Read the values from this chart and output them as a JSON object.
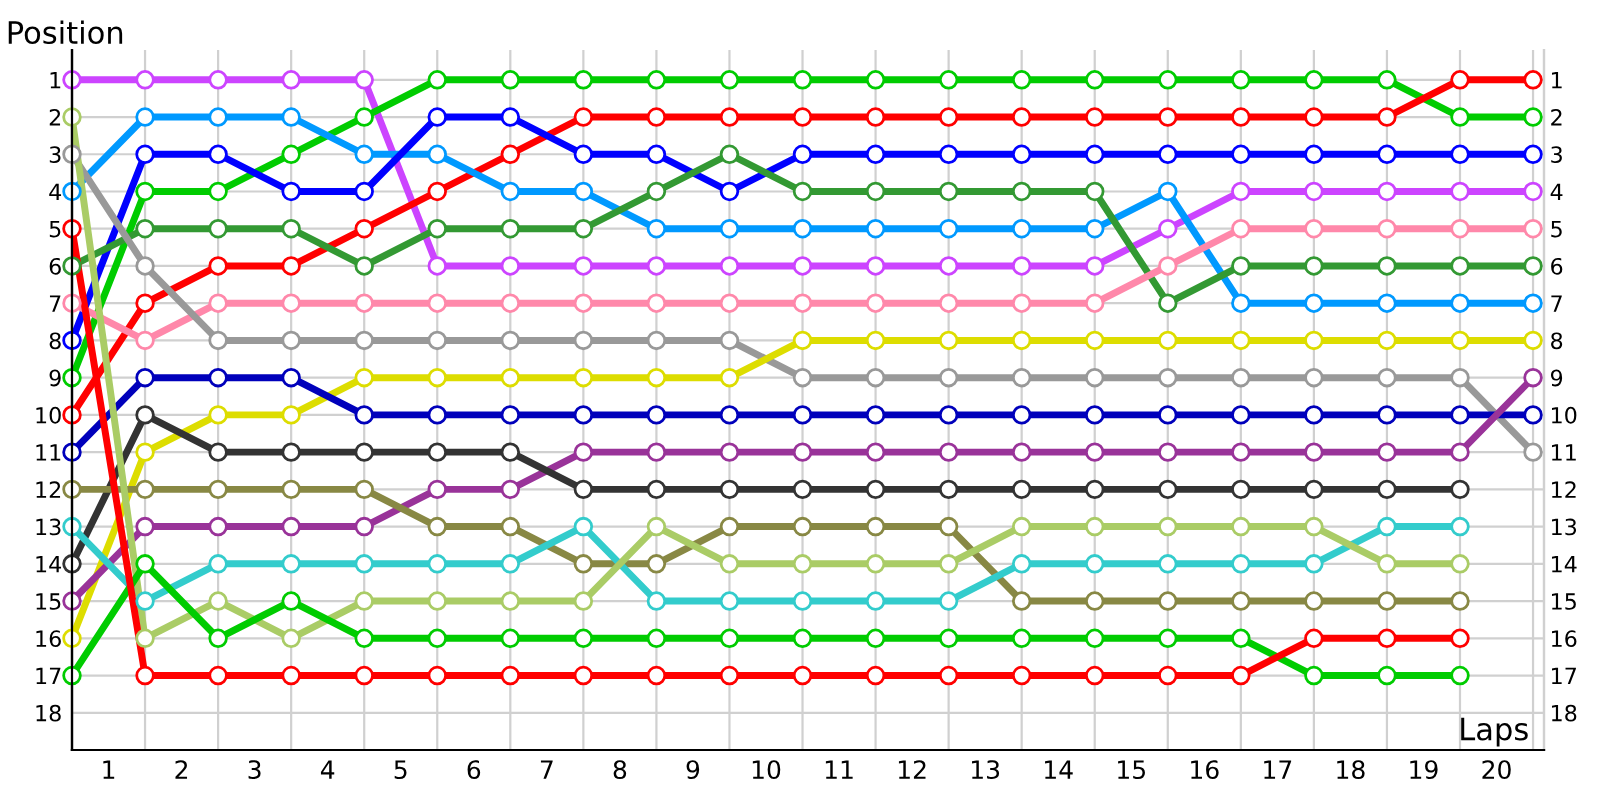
{
  "chart_data": {
    "type": "line",
    "xlabel": "Laps",
    "ylabel": "Position",
    "x": [
      0,
      1,
      2,
      3,
      4,
      5,
      6,
      7,
      8,
      9,
      10,
      11,
      12,
      13,
      14,
      15,
      16,
      17,
      18,
      19,
      20
    ],
    "xlim": [
      0,
      20.15
    ],
    "xticks": [
      {
        "value": 0.5,
        "label": "1"
      },
      {
        "value": 1.5,
        "label": "2"
      },
      {
        "value": 2.5,
        "label": "3"
      },
      {
        "value": 3.5,
        "label": "4"
      },
      {
        "value": 4.5,
        "label": "5"
      },
      {
        "value": 5.5,
        "label": "6"
      },
      {
        "value": 6.5,
        "label": "7"
      },
      {
        "value": 7.5,
        "label": "8"
      },
      {
        "value": 8.5,
        "label": "9"
      },
      {
        "value": 9.5,
        "label": "10"
      },
      {
        "value": 10.5,
        "label": "11"
      },
      {
        "value": 11.5,
        "label": "12"
      },
      {
        "value": 12.5,
        "label": "13"
      },
      {
        "value": 13.5,
        "label": "14"
      },
      {
        "value": 14.5,
        "label": "15"
      },
      {
        "value": 15.5,
        "label": "16"
      },
      {
        "value": 16.5,
        "label": "17"
      },
      {
        "value": 17.5,
        "label": "18"
      },
      {
        "value": 18.5,
        "label": "19"
      },
      {
        "value": 19.5,
        "label": "20"
      }
    ],
    "ylim": [
      19,
      0.2
    ],
    "yticks": [
      1,
      2,
      3,
      4,
      5,
      6,
      7,
      8,
      9,
      10,
      11,
      12,
      13,
      14,
      15,
      16,
      17,
      18
    ],
    "y2lim": [
      19,
      0.2
    ],
    "y2ticks": [
      1,
      2,
      3,
      4,
      5,
      6,
      7,
      8,
      9,
      10,
      11,
      12,
      13,
      14,
      15,
      16,
      17,
      18
    ],
    "grid": true,
    "legend": false,
    "marker": "circle",
    "line_style": "solid",
    "series": [
      {
        "color": "#cc44ff",
        "values": [
          1,
          1,
          1,
          1,
          1,
          6,
          6,
          6,
          6,
          6,
          6,
          6,
          6,
          6,
          6,
          5,
          4,
          4,
          4,
          4,
          4
        ]
      },
      {
        "color": "#00cc00",
        "values": [
          9,
          4,
          4,
          3,
          2,
          1,
          1,
          1,
          1,
          1,
          1,
          1,
          1,
          1,
          1,
          1,
          1,
          1,
          1,
          2,
          2
        ]
      },
      {
        "color": "#ff0000",
        "values": [
          10,
          7,
          6,
          6,
          5,
          4,
          3,
          2,
          2,
          2,
          2,
          2,
          2,
          2,
          2,
          2,
          2,
          2,
          2,
          1,
          1
        ]
      },
      {
        "color": "#0099ff",
        "values": [
          4,
          2,
          2,
          2,
          3,
          3,
          4,
          4,
          5,
          5,
          5,
          5,
          5,
          5,
          5,
          4,
          7,
          7,
          7,
          7,
          7
        ]
      },
      {
        "color": "#0000ff",
        "values": [
          8,
          3,
          3,
          4,
          4,
          2,
          2,
          3,
          3,
          4,
          3,
          3,
          3,
          3,
          3,
          3,
          3,
          3,
          3,
          3,
          3
        ]
      },
      {
        "color": "#339933",
        "values": [
          6,
          5,
          5,
          5,
          6,
          5,
          5,
          5,
          4,
          3,
          4,
          4,
          4,
          4,
          4,
          7,
          6,
          6,
          6,
          6,
          6
        ]
      },
      {
        "color": "#ff88aa",
        "values": [
          7,
          8,
          7,
          7,
          7,
          7,
          7,
          7,
          7,
          7,
          7,
          7,
          7,
          7,
          7,
          6,
          5,
          5,
          5,
          5,
          5
        ]
      },
      {
        "color": "#999999",
        "values": [
          3,
          6,
          8,
          8,
          8,
          8,
          8,
          8,
          8,
          8,
          9,
          9,
          9,
          9,
          9,
          9,
          9,
          9,
          9,
          9,
          11
        ]
      },
      {
        "color": "#dddd00",
        "values": [
          16,
          11,
          10,
          10,
          9,
          9,
          9,
          9,
          9,
          9,
          8,
          8,
          8,
          8,
          8,
          8,
          8,
          8,
          8,
          8,
          8
        ]
      },
      {
        "color": "#0000bb",
        "values": [
          11,
          9,
          9,
          9,
          10,
          10,
          10,
          10,
          10,
          10,
          10,
          10,
          10,
          10,
          10,
          10,
          10,
          10,
          10,
          10,
          10
        ]
      },
      {
        "color": "#993399",
        "values": [
          15,
          13,
          13,
          13,
          13,
          12,
          12,
          11,
          11,
          11,
          11,
          11,
          11,
          11,
          11,
          11,
          11,
          11,
          11,
          11,
          9
        ]
      },
      {
        "color": "#333333",
        "values": [
          14,
          10,
          11,
          11,
          11,
          11,
          11,
          12,
          12,
          12,
          12,
          12,
          12,
          12,
          12,
          12,
          12,
          12,
          12,
          12,
          null
        ]
      },
      {
        "color": "#888844",
        "values": [
          12,
          12,
          12,
          12,
          12,
          13,
          13,
          14,
          14,
          13,
          13,
          13,
          13,
          15,
          15,
          15,
          15,
          15,
          15,
          15,
          null
        ]
      },
      {
        "color": "#33cccc",
        "values": [
          13,
          15,
          14,
          14,
          14,
          14,
          14,
          13,
          15,
          15,
          15,
          15,
          15,
          14,
          14,
          14,
          14,
          14,
          13,
          13,
          null
        ]
      },
      {
        "color": "#aacc66",
        "values": [
          2,
          16,
          15,
          16,
          15,
          15,
          15,
          15,
          13,
          14,
          14,
          14,
          14,
          13,
          13,
          13,
          13,
          13,
          14,
          14,
          null
        ]
      },
      {
        "color": "#00cc00",
        "values": [
          17,
          14,
          16,
          15,
          16,
          16,
          16,
          16,
          16,
          16,
          16,
          16,
          16,
          16,
          16,
          16,
          16,
          17,
          17,
          17,
          null
        ]
      },
      {
        "color": "#ff0000",
        "values": [
          5,
          17,
          17,
          17,
          17,
          17,
          17,
          17,
          17,
          17,
          17,
          17,
          17,
          17,
          17,
          17,
          17,
          16,
          16,
          16,
          null
        ]
      }
    ]
  }
}
